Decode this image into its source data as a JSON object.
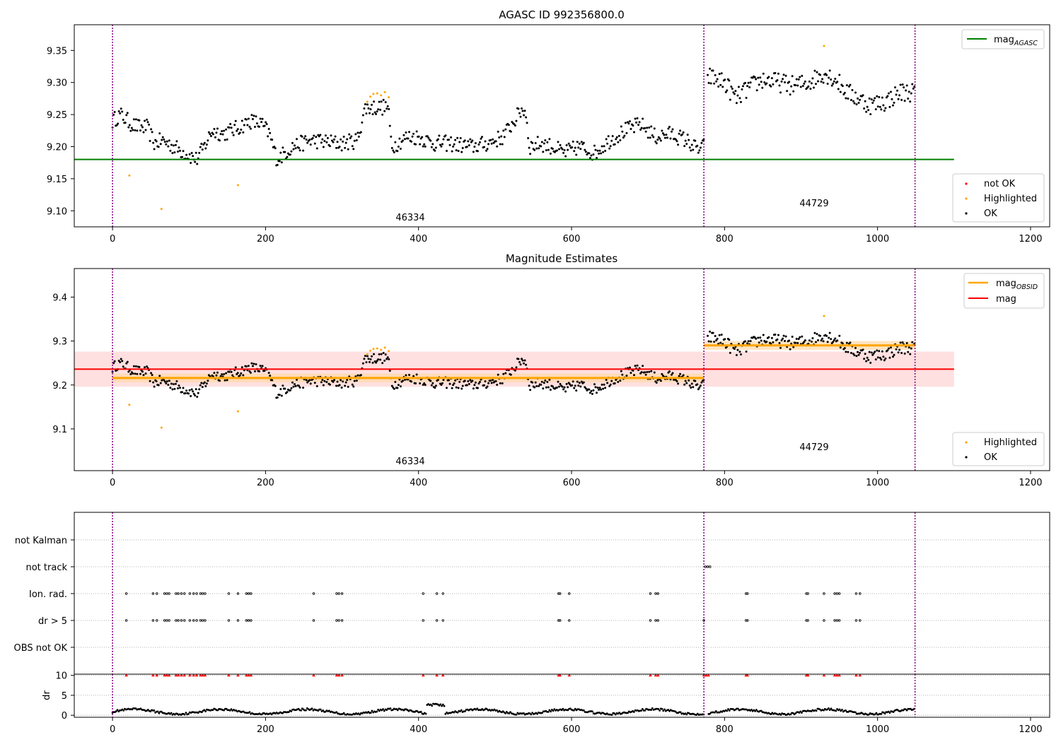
{
  "figure": {
    "panel1_title": "AGASC ID 992356800.0",
    "panel2_title": "Magnitude Estimates",
    "obsid_labels": [
      "46334",
      "44729"
    ]
  },
  "legend1": {
    "line_label": "mag",
    "line_sub": "AGASC",
    "items": [
      "not OK",
      "Highlighted",
      "OK"
    ]
  },
  "legend2": {
    "line1_label": "mag",
    "line1_sub": "OBSID",
    "line2_label": "mag",
    "items": [
      "Highlighted",
      "OK"
    ]
  },
  "colors": {
    "ok": "#000000",
    "highlighted": "#ffa500",
    "not_ok": "#ff0000",
    "agasc": "#008000",
    "mean": "#ff0000",
    "obsid": "#ffa500",
    "boundary": "#800080"
  },
  "chart_data": [
    {
      "type": "scatter",
      "title": "AGASC ID 992356800.0",
      "xlim": [
        -50,
        1225
      ],
      "ylim": [
        9.075,
        9.39
      ],
      "xticks": [
        0,
        200,
        400,
        600,
        800,
        1000,
        1200
      ],
      "yticks": [
        9.1,
        9.15,
        9.2,
        9.25,
        9.3,
        9.35
      ],
      "mag_agasc": 9.18,
      "observation_boundaries": [
        0,
        773,
        1049
      ],
      "observations": [
        {
          "obsid": "46334",
          "x_range": [
            0,
            773
          ],
          "mag": 9.216
        },
        {
          "obsid": "44729",
          "x_range": [
            773,
            1049
          ],
          "mag": 9.29
        }
      ],
      "highlighted_points": [
        [
          22,
          9.155
        ],
        [
          64,
          9.103
        ],
        [
          164,
          9.14
        ],
        [
          333,
          9.27
        ],
        [
          337,
          9.278
        ],
        [
          341,
          9.282
        ],
        [
          346,
          9.283
        ],
        [
          351,
          9.28
        ],
        [
          356,
          9.285
        ],
        [
          361,
          9.277
        ],
        [
          930,
          9.357
        ]
      ],
      "legend": [
        "mag_AGASC",
        "not OK",
        "Highlighted",
        "OK"
      ]
    },
    {
      "type": "scatter",
      "title": "Magnitude Estimates",
      "xlim": [
        -50,
        1225
      ],
      "ylim": [
        9.005,
        9.465
      ],
      "xticks": [
        0,
        200,
        400,
        600,
        800,
        1000,
        1200
      ],
      "yticks": [
        9.1,
        9.2,
        9.3,
        9.4
      ],
      "mag": 9.236,
      "mag_band": [
        9.196,
        9.276
      ],
      "mag_obsid": [
        {
          "obsid": "46334",
          "x_range": [
            0,
            773
          ],
          "value": 9.216,
          "band": [
            9.206,
            9.226
          ]
        },
        {
          "obsid": "44729",
          "x_range": [
            773,
            1049
          ],
          "value": 9.29,
          "band": [
            9.28,
            9.3
          ]
        }
      ],
      "legend": [
        "mag_OBSID",
        "mag",
        "Highlighted",
        "OK"
      ]
    },
    {
      "type": "scatter",
      "title": "",
      "xlim": [
        -50,
        1225
      ],
      "categories": [
        "not Kalman",
        "not track",
        "Ion. rad.",
        "dr > 5",
        "OBS not OK"
      ],
      "ion_rad_points": [
        18,
        53,
        58,
        68,
        71,
        74,
        83,
        86,
        90,
        94,
        101,
        106,
        110,
        115,
        118,
        121,
        152,
        164,
        175,
        178,
        181,
        263,
        293,
        296,
        300,
        406,
        424,
        432,
        583,
        585,
        597,
        703,
        710,
        713,
        828,
        830,
        907,
        909,
        930,
        944,
        947,
        950,
        972,
        977
      ],
      "dr_gt_5_points": [
        18,
        53,
        58,
        68,
        71,
        74,
        83,
        86,
        90,
        94,
        101,
        106,
        110,
        115,
        118,
        121,
        152,
        164,
        175,
        178,
        181,
        263,
        293,
        296,
        300,
        406,
        424,
        432,
        583,
        585,
        597,
        703,
        710,
        713,
        773,
        828,
        830,
        907,
        909,
        930,
        944,
        947,
        950,
        972,
        977
      ],
      "not_track_points": [
        775,
        778,
        781
      ]
    },
    {
      "type": "scatter",
      "title": "",
      "xlim": [
        -50,
        1225
      ],
      "ylim": [
        -0.5,
        10.3
      ],
      "ylabel": "dr",
      "yticks": [
        0,
        5,
        10
      ],
      "clipped_at_10": [
        18,
        53,
        58,
        68,
        71,
        74,
        83,
        86,
        90,
        94,
        101,
        106,
        110,
        115,
        118,
        121,
        152,
        164,
        175,
        178,
        181,
        263,
        293,
        296,
        300,
        406,
        424,
        432,
        583,
        585,
        597,
        703,
        710,
        713,
        773,
        776,
        779,
        828,
        830,
        907,
        909,
        930,
        944,
        947,
        950,
        972,
        977
      ]
    }
  ]
}
